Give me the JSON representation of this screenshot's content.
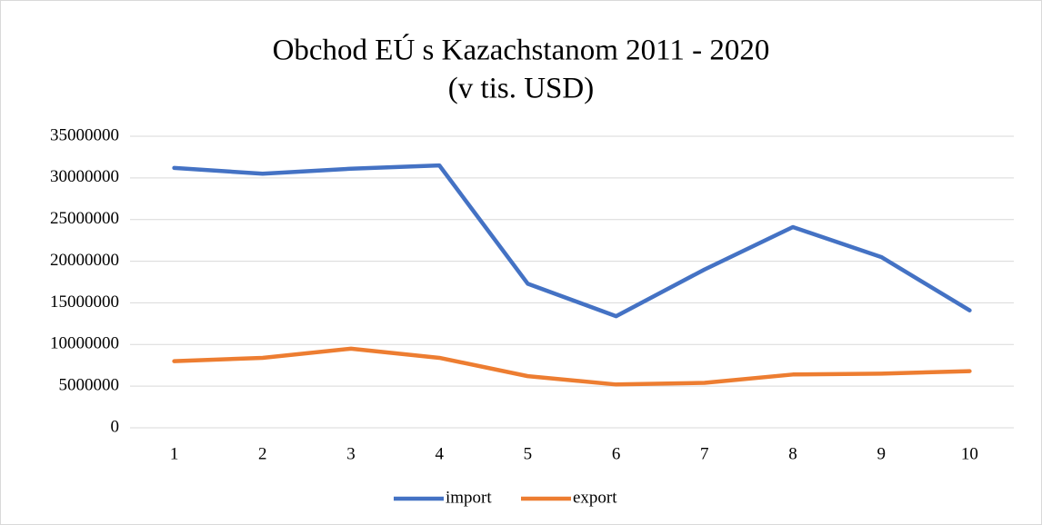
{
  "chart_data": {
    "type": "line",
    "title": "Obchod EÚ s Kazachstanom 2011 - 2020",
    "subtitle": "(v tis. USD)",
    "categories": [
      "1",
      "2",
      "3",
      "4",
      "5",
      "6",
      "7",
      "8",
      "9",
      "10"
    ],
    "series": [
      {
        "name": "import",
        "color": "#4472c4",
        "values": [
          31200000,
          30500000,
          31100000,
          31500000,
          17300000,
          13400000,
          19000000,
          24100000,
          20500000,
          14100000
        ]
      },
      {
        "name": "export",
        "color": "#ed7d31",
        "values": [
          8000000,
          8400000,
          9500000,
          8400000,
          6200000,
          5200000,
          5400000,
          6400000,
          6500000,
          6800000
        ]
      }
    ],
    "ylim": [
      0,
      35000000
    ],
    "yticks": [
      0,
      5000000,
      10000000,
      15000000,
      20000000,
      25000000,
      30000000,
      35000000
    ],
    "grid": true,
    "legend": "bottom"
  }
}
